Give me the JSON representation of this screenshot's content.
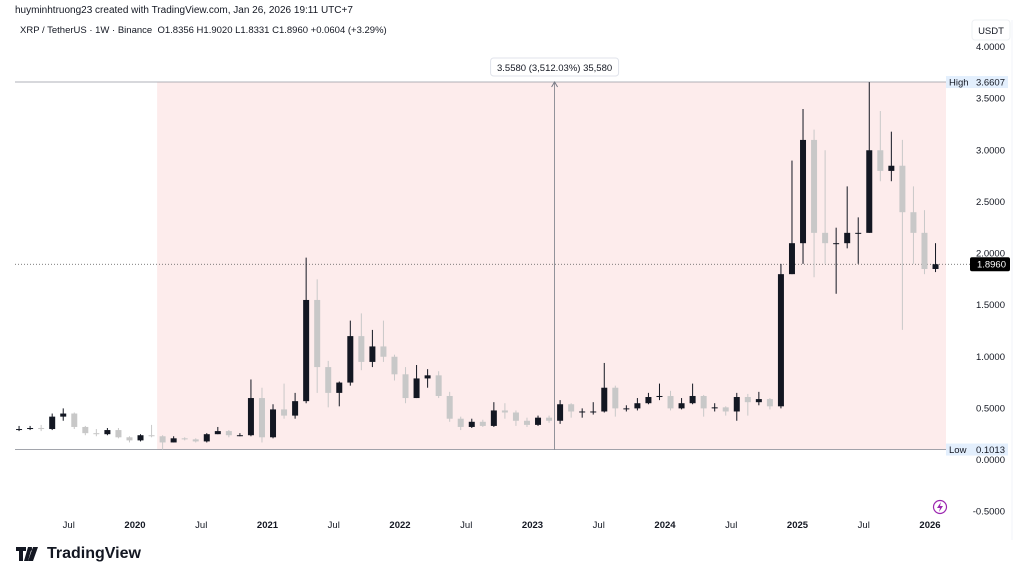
{
  "header": {
    "credit": "huyminhtruong23 created with TradingView.com, Jan 26, 2026 19:11 UTC+7",
    "symbol": "XRP / TetherUS · 1W · Binance",
    "ohlc": "O1.8356  H1.9020  L1.8331  C1.8960  +0.0604 (+3.29%)"
  },
  "logo_text": "TradingView",
  "icons": [
    "lightning-icon",
    "tradingview-logo-icon"
  ],
  "colors": {
    "up": "#131722",
    "down": "#c8c8c8",
    "range_fill": "#fdecec",
    "label_bg": "#e3effd",
    "last_price_bg": "#000000"
  },
  "chart_data": {
    "type": "candlestick",
    "currency_label": "USDT",
    "ylim": [
      -0.5,
      4.0
    ],
    "y_ticks": [
      "4.0000",
      "3.5000",
      "3.0000",
      "2.5000",
      "2.0000",
      "1.5000",
      "1.0000",
      "0.5000",
      "0.0000",
      "-0.5000"
    ],
    "y_tick_values": [
      4,
      3.5,
      3,
      2.5,
      2,
      1.5,
      1,
      0.5,
      0,
      -0.5
    ],
    "x_ticks": [
      {
        "label": "Jul",
        "date": "2019-07",
        "bold": false
      },
      {
        "label": "2020",
        "date": "2020-01",
        "bold": true
      },
      {
        "label": "Jul",
        "date": "2020-07",
        "bold": false
      },
      {
        "label": "2021",
        "date": "2021-01",
        "bold": true
      },
      {
        "label": "Jul",
        "date": "2021-07",
        "bold": false
      },
      {
        "label": "2022",
        "date": "2022-01",
        "bold": true
      },
      {
        "label": "Jul",
        "date": "2022-07",
        "bold": false
      },
      {
        "label": "2023",
        "date": "2023-01",
        "bold": true
      },
      {
        "label": "Jul",
        "date": "2023-07",
        "bold": false
      },
      {
        "label": "2024",
        "date": "2024-01",
        "bold": true
      },
      {
        "label": "Jul",
        "date": "2024-07",
        "bold": false
      },
      {
        "label": "2025",
        "date": "2025-01",
        "bold": true
      },
      {
        "label": "Jul",
        "date": "2025-07",
        "bold": false
      },
      {
        "label": "2026",
        "date": "2026-01",
        "bold": true
      }
    ],
    "grid": false,
    "last_price": {
      "value": 1.896,
      "label": "1.8960"
    },
    "high": {
      "label": "High",
      "value": 3.6607,
      "text": "3.6607"
    },
    "low": {
      "label": "Low",
      "value": 0.1013,
      "text": "0.1013"
    },
    "range_start": "2020-03",
    "range_end": "2026-01",
    "measure": {
      "date": "2023-03",
      "label": "3.5580 (3,512.03%) 35,580"
    },
    "start": "2019-02",
    "ohlc_monthly_approx": [
      [
        0.3,
        0.33,
        0.28,
        0.3
      ],
      [
        0.3,
        0.33,
        0.29,
        0.31
      ],
      [
        0.31,
        0.34,
        0.28,
        0.3
      ],
      [
        0.3,
        0.45,
        0.29,
        0.42
      ],
      [
        0.42,
        0.5,
        0.38,
        0.45
      ],
      [
        0.45,
        0.46,
        0.3,
        0.32
      ],
      [
        0.32,
        0.33,
        0.24,
        0.26
      ],
      [
        0.26,
        0.3,
        0.23,
        0.25
      ],
      [
        0.25,
        0.31,
        0.24,
        0.29
      ],
      [
        0.29,
        0.31,
        0.21,
        0.22
      ],
      [
        0.22,
        0.23,
        0.17,
        0.19
      ],
      [
        0.19,
        0.25,
        0.18,
        0.24
      ],
      [
        0.24,
        0.34,
        0.22,
        0.23
      ],
      [
        0.23,
        0.24,
        0.1,
        0.17
      ],
      [
        0.17,
        0.23,
        0.17,
        0.21
      ],
      [
        0.21,
        0.22,
        0.19,
        0.2
      ],
      [
        0.2,
        0.21,
        0.17,
        0.18
      ],
      [
        0.18,
        0.26,
        0.17,
        0.25
      ],
      [
        0.25,
        0.32,
        0.25,
        0.28
      ],
      [
        0.28,
        0.29,
        0.22,
        0.24
      ],
      [
        0.24,
        0.26,
        0.23,
        0.24
      ],
      [
        0.24,
        0.78,
        0.23,
        0.6
      ],
      [
        0.6,
        0.7,
        0.17,
        0.22
      ],
      [
        0.22,
        0.54,
        0.21,
        0.49
      ],
      [
        0.49,
        0.74,
        0.4,
        0.43
      ],
      [
        0.43,
        0.65,
        0.4,
        0.57
      ],
      [
        0.57,
        1.96,
        0.55,
        1.55
      ],
      [
        1.55,
        1.75,
        0.65,
        0.9
      ],
      [
        0.9,
        0.96,
        0.51,
        0.65
      ],
      [
        0.65,
        0.76,
        0.52,
        0.75
      ],
      [
        0.75,
        1.35,
        0.72,
        1.2
      ],
      [
        1.2,
        1.42,
        0.87,
        0.95
      ],
      [
        0.95,
        1.26,
        0.9,
        1.1
      ],
      [
        1.1,
        1.35,
        0.95,
        1.0
      ],
      [
        1.0,
        1.02,
        0.77,
        0.83
      ],
      [
        0.83,
        0.9,
        0.55,
        0.6
      ],
      [
        0.6,
        0.92,
        0.6,
        0.79
      ],
      [
        0.79,
        0.88,
        0.7,
        0.82
      ],
      [
        0.82,
        0.86,
        0.6,
        0.62
      ],
      [
        0.62,
        0.66,
        0.37,
        0.4
      ],
      [
        0.4,
        0.42,
        0.29,
        0.32
      ],
      [
        0.32,
        0.4,
        0.31,
        0.37
      ],
      [
        0.37,
        0.39,
        0.32,
        0.33
      ],
      [
        0.33,
        0.56,
        0.32,
        0.48
      ],
      [
        0.48,
        0.55,
        0.4,
        0.46
      ],
      [
        0.46,
        0.48,
        0.33,
        0.38
      ],
      [
        0.38,
        0.41,
        0.32,
        0.34
      ],
      [
        0.34,
        0.43,
        0.33,
        0.41
      ],
      [
        0.41,
        0.43,
        0.36,
        0.38
      ],
      [
        0.38,
        0.58,
        0.35,
        0.54
      ],
      [
        0.54,
        0.55,
        0.41,
        0.47
      ],
      [
        0.47,
        0.5,
        0.41,
        0.47
      ],
      [
        0.47,
        0.56,
        0.44,
        0.47
      ],
      [
        0.47,
        0.94,
        0.46,
        0.7
      ],
      [
        0.7,
        0.72,
        0.42,
        0.5
      ],
      [
        0.5,
        0.53,
        0.47,
        0.5
      ],
      [
        0.5,
        0.6,
        0.48,
        0.55
      ],
      [
        0.55,
        0.65,
        0.54,
        0.61
      ],
      [
        0.61,
        0.74,
        0.58,
        0.62
      ],
      [
        0.62,
        0.67,
        0.48,
        0.5
      ],
      [
        0.5,
        0.6,
        0.49,
        0.55
      ],
      [
        0.55,
        0.74,
        0.54,
        0.62
      ],
      [
        0.62,
        0.63,
        0.42,
        0.5
      ],
      [
        0.5,
        0.55,
        0.47,
        0.51
      ],
      [
        0.51,
        0.52,
        0.43,
        0.47
      ],
      [
        0.47,
        0.65,
        0.38,
        0.61
      ],
      [
        0.61,
        0.64,
        0.43,
        0.56
      ],
      [
        0.56,
        0.66,
        0.53,
        0.59
      ],
      [
        0.59,
        0.6,
        0.49,
        0.52
      ],
      [
        0.52,
        1.9,
        0.5,
        1.8
      ],
      [
        1.8,
        2.9,
        1.8,
        2.1
      ],
      [
        2.1,
        3.4,
        1.9,
        3.1
      ],
      [
        3.1,
        3.2,
        1.77,
        2.2
      ],
      [
        2.2,
        3.0,
        1.9,
        2.1
      ],
      [
        2.1,
        2.25,
        1.61,
        2.1
      ],
      [
        2.1,
        2.65,
        2.05,
        2.2
      ],
      [
        2.2,
        2.35,
        1.9,
        2.2
      ],
      [
        2.2,
        3.66,
        2.2,
        3.0
      ],
      [
        3.0,
        3.38,
        2.7,
        2.8
      ],
      [
        2.8,
        3.18,
        2.7,
        2.85
      ],
      [
        2.85,
        3.1,
        1.26,
        2.4
      ],
      [
        2.4,
        2.65,
        1.9,
        2.2
      ],
      [
        2.2,
        2.42,
        1.8,
        1.85
      ],
      [
        1.85,
        2.1,
        1.82,
        1.896
      ]
    ]
  }
}
